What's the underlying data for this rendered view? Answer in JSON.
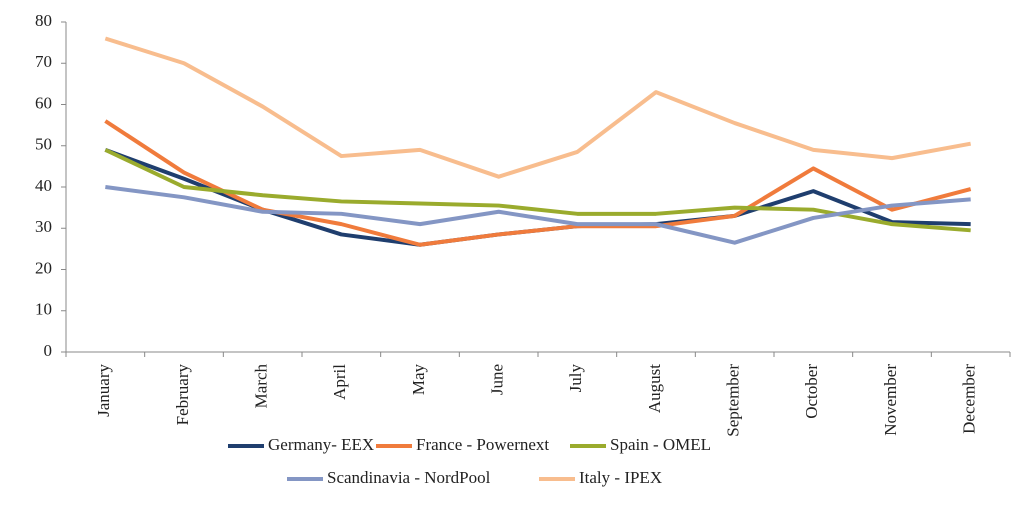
{
  "chart_data": {
    "type": "line",
    "categories": [
      "January",
      "February",
      "March",
      "April",
      "May",
      "June",
      "July",
      "August",
      "September",
      "October",
      "November",
      "December"
    ],
    "series": [
      {
        "name": "Germany- EEX",
        "color": "#1f3e6e",
        "values": [
          49,
          42,
          34.5,
          28.5,
          26,
          28.5,
          30.5,
          31,
          33,
          39,
          31.5,
          31
        ]
      },
      {
        "name": "France - Powernext",
        "color": "#f07b3c",
        "values": [
          56,
          43.5,
          34.5,
          31,
          26,
          28.5,
          30.5,
          30.5,
          33,
          44.5,
          34.5,
          39.5
        ]
      },
      {
        "name": "Spain - OMEL",
        "color": "#9aab2d",
        "values": [
          49,
          40,
          38,
          36.5,
          36,
          35.5,
          33.5,
          33.5,
          35,
          34.5,
          31,
          29.5
        ]
      },
      {
        "name": "Scandinavia - NordPool",
        "color": "#8496c4",
        "values": [
          40,
          37.5,
          34,
          33.5,
          31,
          34,
          31,
          31,
          26.5,
          32.5,
          35.5,
          37
        ]
      },
      {
        "name": "Italy - IPEX",
        "color": "#f8bd8e",
        "values": [
          76,
          70,
          59.5,
          47.5,
          49,
          42.5,
          48.5,
          63,
          55.5,
          49,
          47,
          50.5
        ]
      }
    ],
    "ylim": [
      0,
      80
    ],
    "yticks": [
      0,
      10,
      20,
      30,
      40,
      50,
      60,
      70,
      80
    ],
    "grid": false
  }
}
